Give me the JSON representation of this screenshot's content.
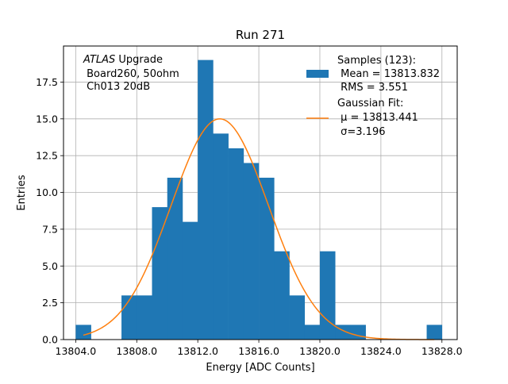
{
  "chart_data": {
    "type": "bar",
    "title": "Run 271",
    "xlabel": "Energy [ADC Counts]",
    "ylabel": "Entries",
    "xlim": [
      13803.2,
      13829.0
    ],
    "ylim": [
      0,
      19.95
    ],
    "grid": true,
    "legend_position": "top-right",
    "xticks": [
      13804.0,
      13808.0,
      13812.0,
      13816.0,
      13820.0,
      13824.0,
      13828.0
    ],
    "xtick_labels": [
      "13804.0",
      "13808.0",
      "13812.0",
      "13816.0",
      "13820.0",
      "13824.0",
      "13828.0"
    ],
    "yticks": [
      0,
      2.5,
      5,
      7.5,
      10,
      12.5,
      15,
      17.5
    ],
    "ytick_labels": [
      "0.0",
      "2.5",
      "5.0",
      "7.5",
      "10.0",
      "12.5",
      "15.0",
      "17.5"
    ],
    "annotation": {
      "italic": "ATLAS",
      "line1_rest": " Upgrade",
      "line2": " Board260, 50ohm",
      "line3": " Ch013 20dB"
    },
    "histogram": {
      "name": "Samples (123):",
      "bin_start": 13804,
      "bin_width": 1,
      "counts": [
        1,
        0,
        0,
        3,
        3,
        9,
        11,
        8,
        19,
        14,
        13,
        12,
        11,
        6,
        3,
        1,
        6,
        1,
        1,
        0,
        0,
        0,
        0,
        1
      ],
      "color": "#1f77b4",
      "legend_lines": [
        "Samples (123):",
        " Mean = 13813.832",
        " RMS = 3.551"
      ]
    },
    "fit": {
      "name": "Gaussian Fit:",
      "type": "gaussian",
      "mu": 13813.441,
      "sigma": 3.196,
      "amplitude": 15.0,
      "x_range": [
        13804.5,
        13827.5
      ],
      "color": "#ff7f0e",
      "legend_lines": [
        "Gaussian Fit:",
        " μ = 13813.441",
        " σ=3.196"
      ]
    }
  }
}
